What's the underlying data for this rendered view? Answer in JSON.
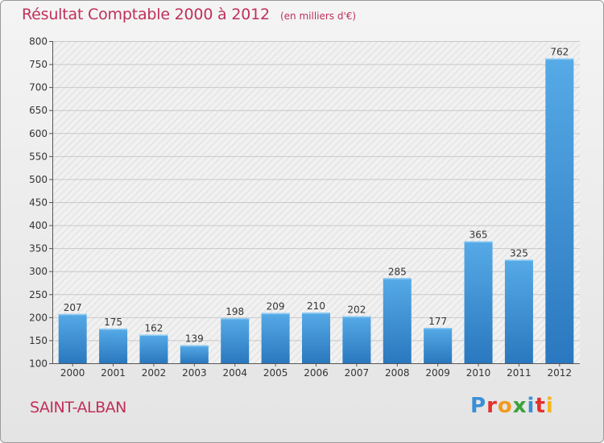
{
  "title": "Résultat Comptable 2000 à 2012",
  "unit_note": "(en milliers d'€)",
  "place": "SAINT-ALBAN",
  "logo": {
    "text": "Proxiti",
    "letters": [
      {
        "ch": "P",
        "color": "#3a8fd6"
      },
      {
        "ch": "r",
        "color": "#e2312e"
      },
      {
        "ch": "o",
        "color": "#f39a1e"
      },
      {
        "ch": "x",
        "color": "#3aa23b"
      },
      {
        "ch": "i",
        "color": "#3a8fd6"
      },
      {
        "ch": "t",
        "color": "#e2312e"
      },
      {
        "ch": "i",
        "color": "#f3b71e"
      }
    ]
  },
  "chart_data": {
    "type": "bar",
    "title": "Résultat Comptable 2000 à 2012",
    "xlabel": "",
    "ylabel": "(en milliers d'€)",
    "categories": [
      "2000",
      "2001",
      "2002",
      "2003",
      "2004",
      "2005",
      "2006",
      "2007",
      "2008",
      "2009",
      "2010",
      "2011",
      "2012"
    ],
    "values": [
      207,
      175,
      162,
      139,
      198,
      209,
      210,
      202,
      285,
      177,
      365,
      325,
      762
    ],
    "ylim": [
      100,
      800
    ],
    "yticks": [
      100,
      150,
      200,
      250,
      300,
      350,
      400,
      450,
      500,
      550,
      600,
      650,
      700,
      750,
      800
    ],
    "grid": true,
    "bar_color": "#3b8fd2"
  }
}
